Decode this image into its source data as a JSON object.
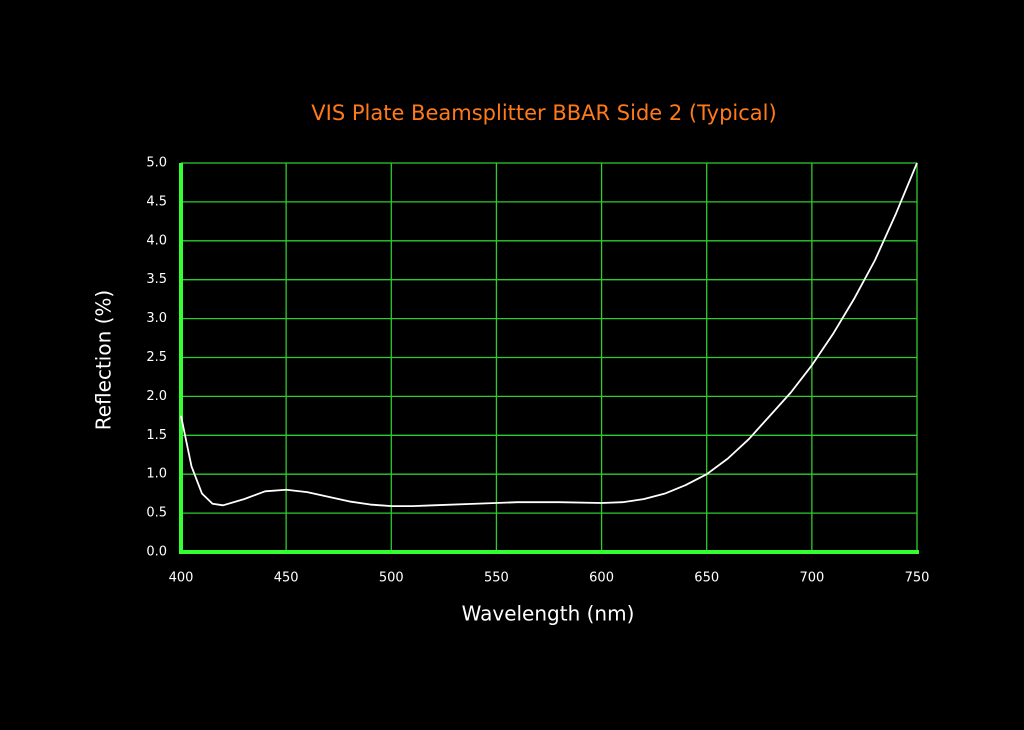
{
  "chart_data": {
    "type": "line",
    "title": "VIS Plate Beamsplitter BBAR Side 2  (Typical)",
    "x_label": "Wavelength (nm)",
    "y_label": "Reflection (%)",
    "x": [
      400,
      405,
      410,
      415,
      420,
      430,
      440,
      450,
      460,
      470,
      480,
      490,
      500,
      510,
      520,
      540,
      560,
      580,
      600,
      610,
      620,
      630,
      640,
      650,
      660,
      670,
      680,
      690,
      700,
      710,
      720,
      730,
      740,
      750
    ],
    "series": [
      {
        "name": "Reflection",
        "color": "#ffffff",
        "values": [
          1.75,
          1.1,
          0.75,
          0.62,
          0.6,
          0.68,
          0.78,
          0.8,
          0.77,
          0.71,
          0.65,
          0.61,
          0.59,
          0.59,
          0.6,
          0.62,
          0.64,
          0.64,
          0.63,
          0.64,
          0.68,
          0.75,
          0.86,
          1.0,
          1.2,
          1.45,
          1.75,
          2.05,
          2.4,
          2.8,
          3.25,
          3.75,
          4.35,
          5.0
        ]
      }
    ],
    "xlim": [
      400,
      750
    ],
    "xticks": [
      400,
      450,
      500,
      550,
      600,
      650,
      700,
      750
    ],
    "ylim": [
      0,
      5
    ],
    "yticks": [
      {
        "value": 0,
        "label": "0.0"
      },
      {
        "value": 0.5,
        "label": "0.5"
      },
      {
        "value": 1,
        "label": "1.0"
      },
      {
        "value": 1.5,
        "label": "1.5"
      },
      {
        "value": 2,
        "label": "2.0"
      },
      {
        "value": 2.5,
        "label": "2.5"
      },
      {
        "value": 3,
        "label": "3.0"
      },
      {
        "value": 3.5,
        "label": "3.5"
      },
      {
        "value": 4,
        "label": "4.0"
      },
      {
        "value": 4.5,
        "label": "4.5"
      },
      {
        "value": 5,
        "label": "5.0"
      }
    ],
    "grid": true,
    "grid_color": "#2ecc2e",
    "axis_color": "#33ff33",
    "title_color": "#ff7a1a"
  }
}
